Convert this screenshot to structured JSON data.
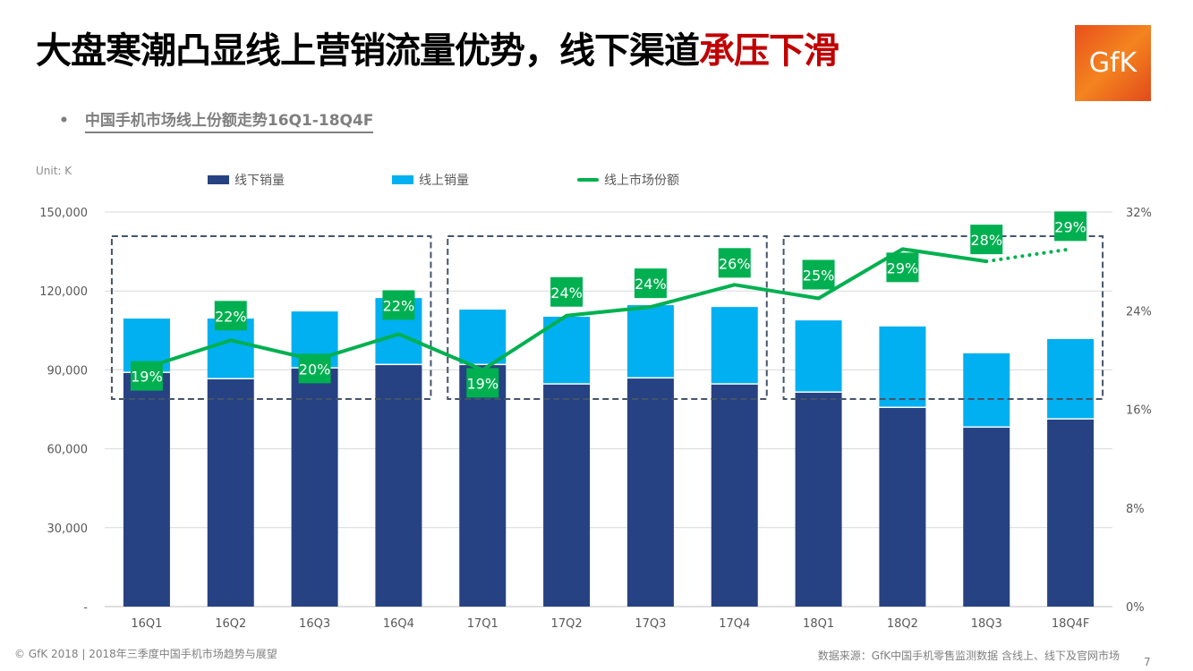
{
  "header": {
    "title_main": "大盘寒潮凸显线上营销流量优势，线下渠道",
    "title_highlight": "承压下滑",
    "highlight_color": "#c00000",
    "logo_text": "GfK",
    "subtitle_bullet": "•",
    "subtitle": "中国手机市场线上份额走势16Q1-18Q4F"
  },
  "chart_data": {
    "type": "bar",
    "stacked": true,
    "unit_label": "Unit: K",
    "categories": [
      "16Q1",
      "16Q2",
      "16Q3",
      "16Q4",
      "17Q1",
      "17Q2",
      "17Q3",
      "17Q4",
      "18Q1",
      "18Q2",
      "18Q3",
      "18Q4F"
    ],
    "series": [
      {
        "name": "线下销量",
        "type": "bar",
        "axis": "left",
        "color": "#264282",
        "values": [
          88800,
          86400,
          90500,
          91800,
          91800,
          84400,
          86700,
          84400,
          81300,
          75500,
          68000,
          71100
        ]
      },
      {
        "name": "线上销量",
        "type": "bar",
        "axis": "left",
        "color": "#00b0f0",
        "values": [
          20700,
          23100,
          21700,
          25500,
          21100,
          25800,
          27900,
          29500,
          27500,
          31000,
          28300,
          30600
        ]
      },
      {
        "name": "线上市场份额",
        "type": "line",
        "axis": "right",
        "color": "#00b050",
        "values": [
          19.4,
          21.6,
          20.0,
          22.1,
          19.2,
          23.6,
          24.3,
          26.1,
          25.0,
          29.0,
          28.0,
          29.0
        ],
        "labels": [
          "19%",
          "22%",
          "20%",
          "22%",
          "19%",
          "24%",
          "24%",
          "26%",
          "25%",
          "29%",
          "28%",
          "29%"
        ],
        "dotted_from_index": 10
      }
    ],
    "left_axis": {
      "ylim": [
        0,
        150000
      ],
      "ticks": [
        "-",
        "30,000",
        "60,000",
        "90,000",
        "120,000",
        "150,000"
      ]
    },
    "right_axis": {
      "ylim": [
        0,
        32
      ],
      "ticks": [
        "0%",
        "8%",
        "16%",
        "24%",
        "32%"
      ]
    },
    "grid": true,
    "legend": "top",
    "highlight_groups": [
      [
        "16Q1",
        "16Q4"
      ],
      [
        "17Q1",
        "17Q4"
      ],
      [
        "18Q1",
        "18Q4F"
      ]
    ]
  },
  "footer": {
    "left": "© GfK 2018 | 2018年三季度中国手机市场趋势与展望",
    "source": "数据来源：GfK中国手机零售监测数据 含线上、线下及官网市场",
    "page": "7"
  }
}
